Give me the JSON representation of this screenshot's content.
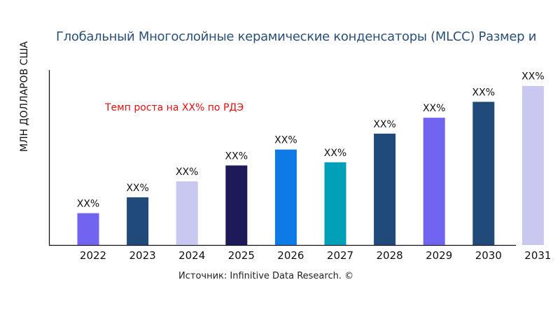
{
  "chart_data": {
    "type": "bar",
    "title": "Глобальный Многослойные керамические конденсаторы (MLCC) Размер и",
    "ylabel": "МЛН ДОЛЛАРОВ США",
    "xlabel": "",
    "categories": [
      "2022",
      "2023",
      "2024",
      "2025",
      "2026",
      "2027",
      "2028",
      "2029",
      "2030",
      "2031"
    ],
    "values": [
      20,
      30,
      40,
      50,
      60,
      52,
      70,
      80,
      90,
      100
    ],
    "data_labels": [
      "XX%",
      "XX%",
      "XX%",
      "XX%",
      "XX%",
      "XX%",
      "XX%",
      "XX%",
      "XX%",
      "XX%"
    ],
    "colors": [
      "#7064f0",
      "#1f4a7a",
      "#c8c8f0",
      "#1e1a5a",
      "#0e7ae6",
      "#00a0b8",
      "#1f4a7a",
      "#7064f0",
      "#1f4a7a",
      "#c8c8f0"
    ],
    "ylim": [
      0,
      110
    ],
    "grid": false,
    "annotation": "Темп роста на XX% по РДЭ",
    "annotation_color": "#e01010",
    "source": "Источник: Infinitive Data Research. ©"
  }
}
